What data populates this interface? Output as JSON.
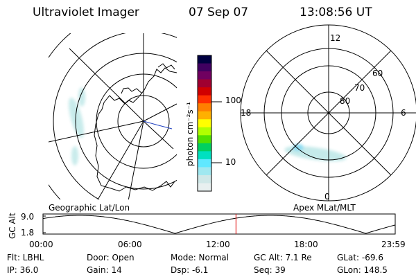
{
  "header": {
    "instrument": "Ultraviolet Imager",
    "date": "07 Sep 07",
    "time": "13:08:56 UT"
  },
  "geographic_panel": {
    "label": "Geographic Lat/Lon"
  },
  "colorbar": {
    "unit_label": "photon cm⁻²s⁻¹",
    "ticks": [
      {
        "label": "100",
        "value": 100
      },
      {
        "label": "10",
        "value": 10
      }
    ],
    "scale": "log",
    "colors": [
      "#000040",
      "#400060",
      "#700060",
      "#a00030",
      "#d00000",
      "#ff3000",
      "#ff8000",
      "#ffb000",
      "#ffff00",
      "#b0ff00",
      "#50e000",
      "#00d060",
      "#00e0c0",
      "#60e8ff",
      "#a0e8f0",
      "#d0e8e8",
      "#e8f0f0"
    ]
  },
  "magnetic_panel": {
    "label": "Apex MLat/MLT",
    "mlt_labels": [
      {
        "label": "12",
        "pos": "top"
      },
      {
        "label": "18",
        "pos": "left"
      },
      {
        "label": "6",
        "pos": "right"
      },
      {
        "label": "0",
        "pos": "bottom"
      }
    ],
    "mlat_labels": [
      {
        "label": "60",
        "value": 60
      },
      {
        "label": "70",
        "value": 70
      },
      {
        "label": "80",
        "value": 80
      }
    ]
  },
  "altitude_plot": {
    "ylabel": "GC Alt",
    "y_ticks": [
      "9.0",
      "1.8"
    ],
    "x_ticks": [
      "00:00",
      "06:00",
      "12:00",
      "18:00",
      "23:59"
    ],
    "current_time_hours": 13.15,
    "marker_color": "#e00000"
  },
  "info": {
    "filter": "Flt: LBHL",
    "door": "Door: Open",
    "mode": "Mode: Normal",
    "gc_alt": "GC Alt: 7.1 Re",
    "glat": "GLat: -69.6",
    "ip": "IP: 36.0",
    "gain": "Gain: 14",
    "dsp": "Dsp:    -6.1",
    "seq": "Seq: 39",
    "glon": "GLon: 148.5"
  }
}
